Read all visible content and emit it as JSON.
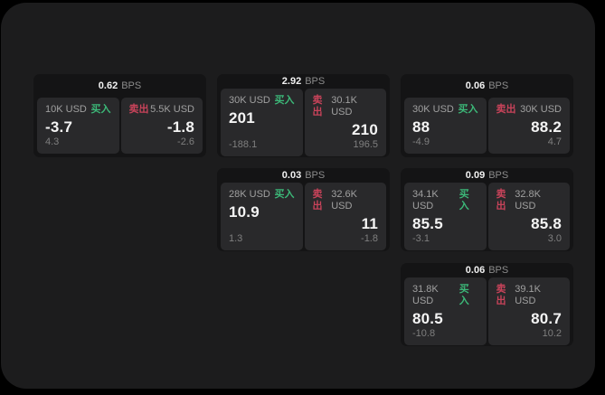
{
  "labels": {
    "bps_unit": "BPS",
    "buy": "买入",
    "sell": "卖出"
  },
  "colors": {
    "background": "#000000",
    "panel": "#1c1c1d",
    "card": "#141415",
    "subpanel": "#29292b",
    "buy": "#3cb878",
    "sell": "#c8435a"
  },
  "cards": [
    {
      "bps": "0.62",
      "col": 1,
      "row": 1,
      "buy": {
        "amount": "10K USD",
        "price": "-3.7",
        "delta": "4.3"
      },
      "sell": {
        "amount": "5.5K USD",
        "price": "-1.8",
        "delta": "-2.6"
      }
    },
    {
      "bps": "2.92",
      "col": 2,
      "row": 1,
      "buy": {
        "amount": "30K USD",
        "price": "201",
        "delta": "-188.1"
      },
      "sell": {
        "amount": "30.1K USD",
        "price": "210",
        "delta": "196.5"
      }
    },
    {
      "bps": "0.06",
      "col": 3,
      "row": 1,
      "buy": {
        "amount": "30K USD",
        "price": "88",
        "delta": "-4.9"
      },
      "sell": {
        "amount": "30K USD",
        "price": "88.2",
        "delta": "4.7"
      }
    },
    {
      "bps": "0.03",
      "col": 2,
      "row": 2,
      "buy": {
        "amount": "28K USD",
        "price": "10.9",
        "delta": "1.3"
      },
      "sell": {
        "amount": "32.6K USD",
        "price": "11",
        "delta": "-1.8"
      }
    },
    {
      "bps": "0.09",
      "col": 3,
      "row": 2,
      "buy": {
        "amount": "34.1K USD",
        "price": "85.5",
        "delta": "-3.1"
      },
      "sell": {
        "amount": "32.8K USD",
        "price": "85.8",
        "delta": "3.0"
      }
    },
    {
      "bps": "0.06",
      "col": 3,
      "row": 3,
      "buy": {
        "amount": "31.8K USD",
        "price": "80.5",
        "delta": "-10.8"
      },
      "sell": {
        "amount": "39.1K USD",
        "price": "80.7",
        "delta": "10.2"
      }
    }
  ]
}
